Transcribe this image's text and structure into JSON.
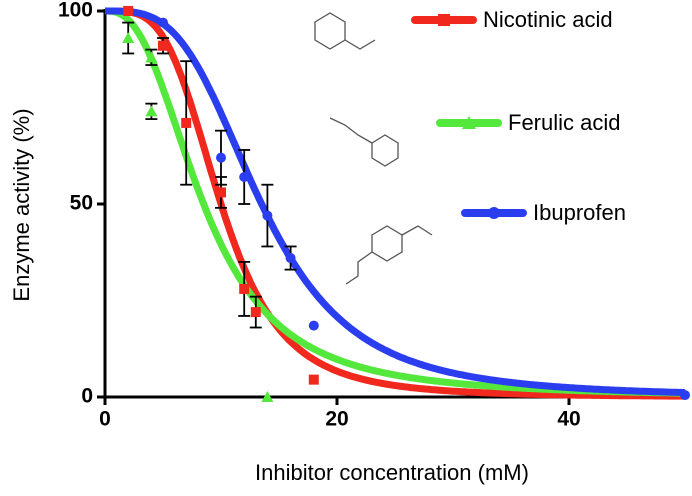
{
  "chart_data": {
    "type": "scatter",
    "xlabel": "Inhibitor concentration (mM)",
    "ylabel": "Enzyme activity (%)",
    "xlim": [
      0,
      50
    ],
    "ylim": [
      0,
      100
    ],
    "xticks": [
      0,
      20,
      40
    ],
    "yticks": [
      0,
      50,
      100
    ],
    "series": [
      {
        "name": "Nicotinic acid",
        "color": "#f0281e",
        "marker": "square",
        "x": [
          2,
          5,
          7,
          10,
          12,
          13,
          18
        ],
        "values": [
          100,
          91,
          71,
          53,
          28,
          22,
          4.5
        ],
        "errors": [
          0,
          2,
          16,
          4,
          7,
          4,
          0
        ],
        "fit": {
          "ic50": 10,
          "hill": 3.8
        }
      },
      {
        "name": "Ferulic acid",
        "color": "#55e83c",
        "marker": "triangle",
        "x": [
          2,
          4,
          4,
          14
        ],
        "values": [
          93,
          88,
          74,
          0
        ],
        "errors": [
          4,
          2,
          2,
          0
        ],
        "fit": {
          "ic50": 8.5,
          "hill": 2.6
        }
      },
      {
        "name": "Ibuprofen",
        "color": "#2a3ef0",
        "marker": "circle",
        "x": [
          5,
          10,
          12,
          14,
          16,
          18,
          50
        ],
        "values": [
          97,
          62,
          57,
          47,
          36,
          18.5,
          0.5
        ],
        "errors": [
          0,
          7,
          7,
          8,
          3,
          0,
          0
        ],
        "fit": {
          "ic50": 13.5,
          "hill": 3.4
        }
      }
    ]
  }
}
